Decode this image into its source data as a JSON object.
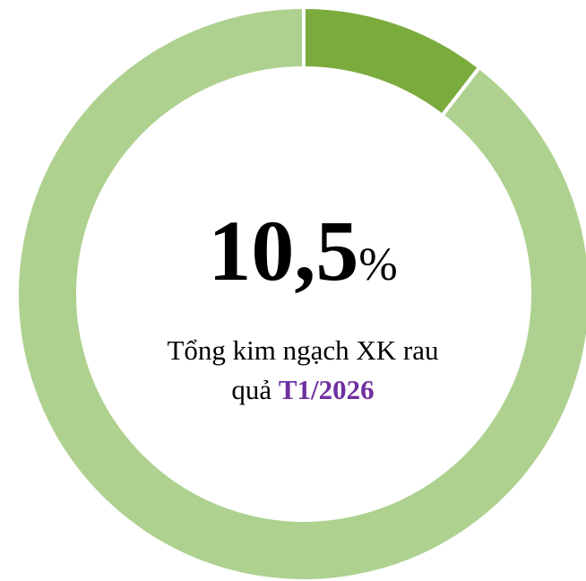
{
  "chart_data": {
    "type": "donut",
    "values": [
      10.5,
      89.5
    ],
    "value_labels": [
      "10,5%",
      null
    ],
    "colors": [
      "#7bab3d",
      "#aed18f"
    ],
    "subtitle": "Tổng kim ngạch XK rau quả",
    "period": "T1/2026",
    "period_color": "#7030a0"
  }
}
